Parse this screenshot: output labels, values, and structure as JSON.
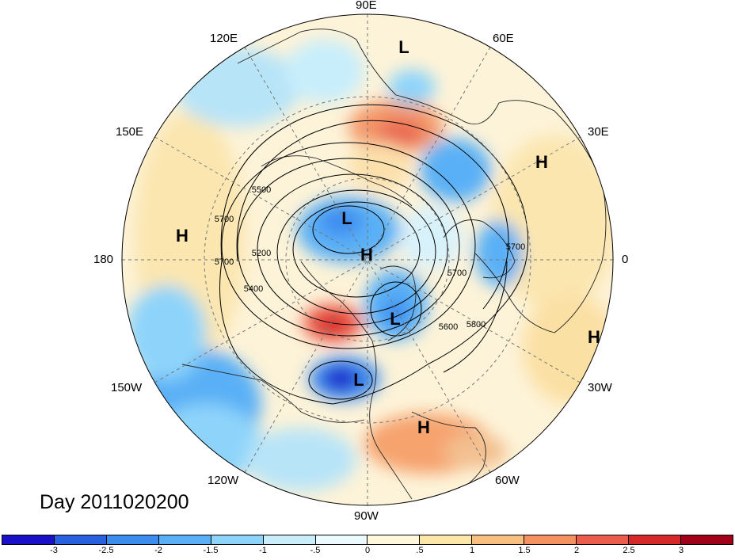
{
  "title": "Day 2011020200",
  "longitude_labels": {
    "lon_90E": "90E",
    "lon_60E": "60E",
    "lon_120E": "120E",
    "lon_30E": "30E",
    "lon_150E": "150E",
    "lon_180": "180",
    "lon_0": "0",
    "lon_150W": "150W",
    "lon_30W": "30W",
    "lon_120W": "120W",
    "lon_60W": "60W",
    "lon_90W": "90W"
  },
  "pressure_centers": [
    {
      "id": "L-siberia-north",
      "label": "L"
    },
    {
      "id": "H-africa",
      "label": "H"
    },
    {
      "id": "H-pacific",
      "label": "H"
    },
    {
      "id": "L-arctic-asia",
      "label": "L"
    },
    {
      "id": "H-pole",
      "label": "H"
    },
    {
      "id": "L-hudson",
      "label": "L"
    },
    {
      "id": "H-atlantic",
      "label": "H"
    },
    {
      "id": "L-usa",
      "label": "L"
    },
    {
      "id": "H-caribbean",
      "label": "H"
    }
  ],
  "contour_labels": [
    "5500",
    "5700",
    "5200",
    "5400",
    "5700",
    "5700",
    "5600",
    "5800",
    "5700"
  ],
  "colorbar": {
    "colors": [
      "#1a10c8",
      "#2860e0",
      "#3c8cf0",
      "#5ab0f6",
      "#8ed4fa",
      "#c8eefc",
      "#eafaff",
      "#fff7dc",
      "#fde7a8",
      "#f8c080",
      "#f59060",
      "#ec5c4c",
      "#d62828",
      "#a00018"
    ],
    "ticks": [
      "-3",
      "-2.5",
      "-2",
      "-1.5",
      "-1",
      "-.5",
      "0",
      ".5",
      "1",
      "1.5",
      "2",
      "2.5",
      "3"
    ]
  }
}
